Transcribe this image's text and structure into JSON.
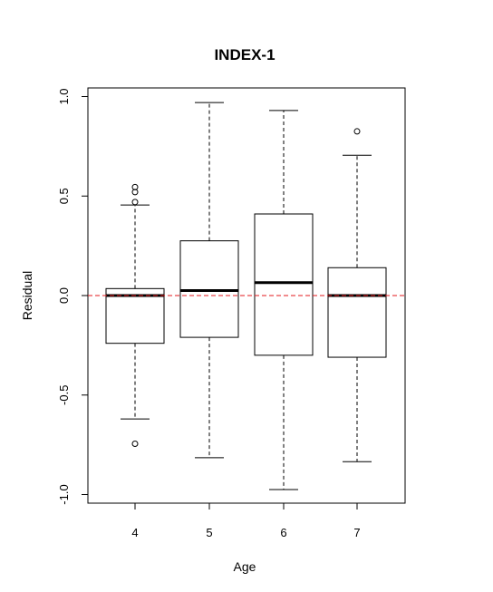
{
  "chart_data": {
    "type": "boxplot",
    "title": "INDEX-1",
    "xlabel": "Age",
    "ylabel": "Residual",
    "categories": [
      "4",
      "5",
      "6",
      "7"
    ],
    "y_ticks": [
      "-1.0",
      "-0.5",
      "0.0",
      "0.5",
      "1.0"
    ],
    "ylim": [
      -1.05,
      1.05
    ],
    "grid": false,
    "reference_line": {
      "y": 0.0,
      "style": "dashed",
      "color": "#e31a1c"
    },
    "boxes": [
      {
        "category": "4",
        "whisker_low": -0.62,
        "q1": -0.24,
        "median": 0.0,
        "q3": 0.035,
        "whisker_high": 0.455,
        "outliers": [
          0.47,
          0.52,
          0.545,
          -0.745
        ]
      },
      {
        "category": "5",
        "whisker_low": -0.815,
        "q1": -0.21,
        "median": 0.025,
        "q3": 0.275,
        "whisker_high": 0.97,
        "outliers": []
      },
      {
        "category": "6",
        "whisker_low": -0.975,
        "q1": -0.3,
        "median": 0.065,
        "q3": 0.41,
        "whisker_high": 0.93,
        "outliers": []
      },
      {
        "category": "7",
        "whisker_low": -0.835,
        "q1": -0.31,
        "median": 0.0,
        "q3": 0.14,
        "whisker_high": 0.705,
        "outliers": [
          0.825
        ]
      }
    ],
    "colors": {
      "box": "#000000",
      "reference_line": "#e31a1c"
    }
  }
}
